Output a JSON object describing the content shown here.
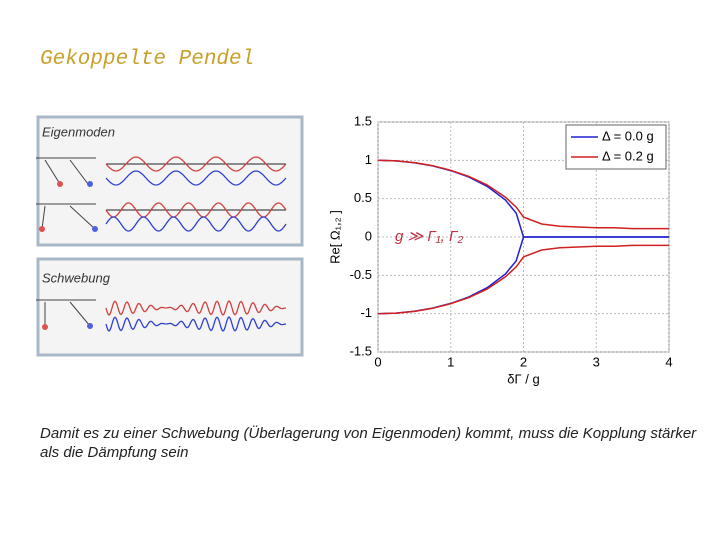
{
  "title": "Gekoppelte Pendel",
  "panels": [
    {
      "label": "Eigenmoden"
    },
    {
      "label": "Schwebung"
    }
  ],
  "caption": "Damit es zu einer Schwebung (Überlagerung von Eigenmoden) kommt, muss die Kopplung stärker als die Dämpfung sein",
  "chart_data": {
    "type": "line",
    "ylabel": "Re[ Ω₁,₂ ]",
    "xlabel": "δΓ / g",
    "annotation": "g ≫ Γ₁, Γ₂",
    "x": [
      0,
      0.25,
      0.5,
      0.75,
      1,
      1.25,
      1.5,
      1.75,
      1.9,
      2,
      2.25,
      2.5,
      2.75,
      3,
      3.25,
      3.5,
      3.75,
      4
    ],
    "xlim": [
      0,
      4
    ],
    "xticks": [
      0,
      1,
      2,
      3,
      4
    ],
    "ylim": [
      -1.5,
      1.5
    ],
    "yticks": [
      -1.5,
      -1,
      -0.5,
      0,
      0.5,
      1,
      1.5
    ],
    "grid": true,
    "legend": "upper right",
    "series": [
      {
        "name": "Δ = 0.0 g",
        "color": "#2020d0",
        "upper": [
          1,
          0.992,
          0.968,
          0.927,
          0.866,
          0.781,
          0.661,
          0.484,
          0.312,
          0,
          0,
          0,
          0,
          0,
          0,
          0,
          0,
          0
        ],
        "lower": [
          -1,
          -0.992,
          -0.968,
          -0.927,
          -0.866,
          -0.781,
          -0.661,
          -0.484,
          -0.312,
          0,
          0,
          0,
          0,
          0,
          0,
          0,
          0,
          0
        ]
      },
      {
        "name": "Δ = 0.2 g",
        "color": "#d02020",
        "upper": [
          1,
          0.993,
          0.97,
          0.93,
          0.87,
          0.79,
          0.68,
          0.52,
          0.39,
          0.26,
          0.17,
          0.14,
          0.13,
          0.12,
          0.12,
          0.11,
          0.11,
          0.11
        ],
        "lower": [
          -1,
          -0.993,
          -0.97,
          -0.93,
          -0.87,
          -0.79,
          -0.68,
          -0.52,
          -0.39,
          -0.26,
          -0.17,
          -0.14,
          -0.13,
          -0.12,
          -0.12,
          -0.11,
          -0.11,
          -0.11
        ]
      }
    ]
  }
}
